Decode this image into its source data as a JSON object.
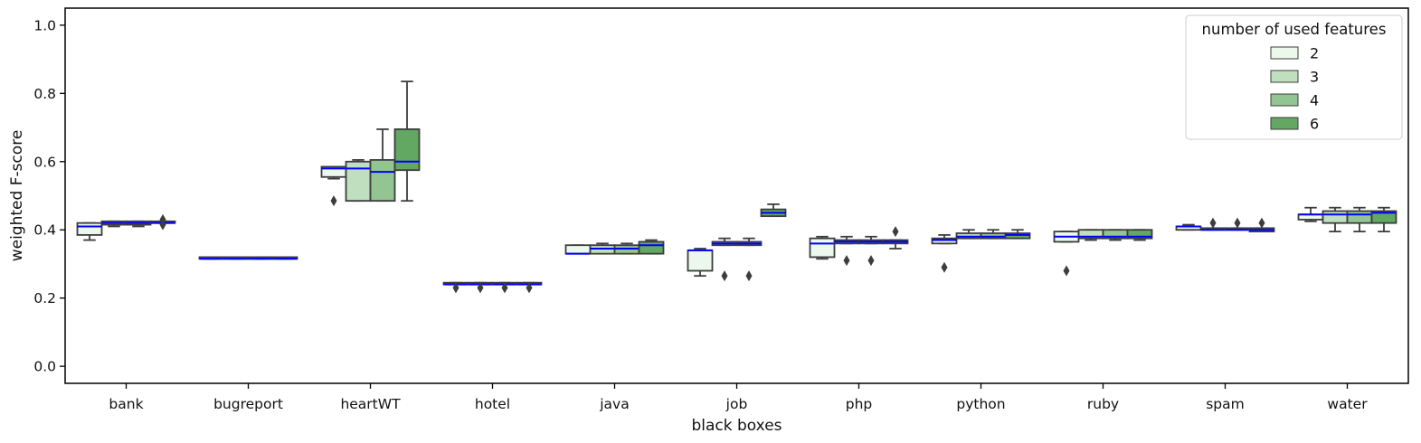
{
  "chart_data": {
    "type": "boxplot",
    "title": "",
    "xlabel": "black boxes",
    "ylabel": "weighted F-score",
    "ylim": [
      -0.05,
      1.05
    ],
    "yticks": [
      0.0,
      0.2,
      0.4,
      0.6,
      0.8,
      1.0
    ],
    "ytick_labels": [
      "0.0",
      "0.2",
      "0.4",
      "0.6",
      "0.8",
      "1.0"
    ],
    "grid": false,
    "legend": {
      "title": "number of used features",
      "placement": "top-right",
      "entries": [
        {
          "label": "2",
          "color": "#edf8ed"
        },
        {
          "label": "3",
          "color": "#bfdfbf"
        },
        {
          "label": "4",
          "color": "#93c593"
        },
        {
          "label": "6",
          "color": "#62a762"
        }
      ]
    },
    "colors": {
      "box_edge": "#3d3d3d",
      "median": "#0000ff",
      "axis": "#000000"
    },
    "categories": [
      "bank",
      "bugreport",
      "heartWT",
      "hotel",
      "java",
      "job",
      "php",
      "python",
      "ruby",
      "spam",
      "water"
    ],
    "series": [
      {
        "name": "2",
        "boxes": [
          {
            "whislo": 0.37,
            "q1": 0.385,
            "med": 0.41,
            "q3": 0.42,
            "whishi": 0.42,
            "fliers": []
          },
          {
            "whislo": 0.315,
            "q1": 0.315,
            "med": 0.315,
            "q3": 0.32,
            "whishi": 0.32,
            "fliers": []
          },
          {
            "whislo": 0.55,
            "q1": 0.555,
            "med": 0.58,
            "q3": 0.585,
            "whishi": 0.585,
            "fliers": [
              0.485
            ]
          },
          {
            "whislo": 0.24,
            "q1": 0.24,
            "med": 0.24,
            "q3": 0.245,
            "whishi": 0.245,
            "fliers": [
              0.23
            ]
          },
          {
            "whislo": 0.33,
            "q1": 0.33,
            "med": 0.33,
            "q3": 0.355,
            "whishi": 0.355,
            "fliers": []
          },
          {
            "whislo": 0.265,
            "q1": 0.28,
            "med": 0.34,
            "q3": 0.34,
            "whishi": 0.345,
            "fliers": []
          },
          {
            "whislo": 0.315,
            "q1": 0.32,
            "med": 0.36,
            "q3": 0.375,
            "whishi": 0.38,
            "fliers": []
          },
          {
            "whislo": 0.36,
            "q1": 0.36,
            "med": 0.37,
            "q3": 0.375,
            "whishi": 0.385,
            "fliers": [
              0.29
            ]
          },
          {
            "whislo": 0.365,
            "q1": 0.365,
            "med": 0.38,
            "q3": 0.395,
            "whishi": 0.395,
            "fliers": [
              0.28
            ]
          },
          {
            "whislo": 0.4,
            "q1": 0.4,
            "med": 0.41,
            "q3": 0.41,
            "whishi": 0.415,
            "fliers": []
          },
          {
            "whislo": 0.425,
            "q1": 0.43,
            "med": 0.445,
            "q3": 0.445,
            "whishi": 0.465,
            "fliers": []
          }
        ]
      },
      {
        "name": "3",
        "boxes": [
          {
            "whislo": 0.41,
            "q1": 0.415,
            "med": 0.42,
            "q3": 0.425,
            "whishi": 0.425,
            "fliers": []
          },
          {
            "whislo": 0.315,
            "q1": 0.315,
            "med": 0.315,
            "q3": 0.32,
            "whishi": 0.32,
            "fliers": []
          },
          {
            "whislo": 0.485,
            "q1": 0.485,
            "med": 0.58,
            "q3": 0.6,
            "whishi": 0.605,
            "fliers": []
          },
          {
            "whislo": 0.24,
            "q1": 0.24,
            "med": 0.24,
            "q3": 0.245,
            "whishi": 0.245,
            "fliers": [
              0.23
            ]
          },
          {
            "whislo": 0.33,
            "q1": 0.33,
            "med": 0.345,
            "q3": 0.355,
            "whishi": 0.36,
            "fliers": []
          },
          {
            "whislo": 0.355,
            "q1": 0.355,
            "med": 0.36,
            "q3": 0.365,
            "whishi": 0.375,
            "fliers": [
              0.265
            ]
          },
          {
            "whislo": 0.36,
            "q1": 0.36,
            "med": 0.365,
            "q3": 0.37,
            "whishi": 0.38,
            "fliers": [
              0.31
            ]
          },
          {
            "whislo": 0.375,
            "q1": 0.375,
            "med": 0.38,
            "q3": 0.39,
            "whishi": 0.4,
            "fliers": []
          },
          {
            "whislo": 0.37,
            "q1": 0.375,
            "med": 0.38,
            "q3": 0.4,
            "whishi": 0.4,
            "fliers": []
          },
          {
            "whislo": 0.4,
            "q1": 0.4,
            "med": 0.4,
            "q3": 0.405,
            "whishi": 0.405,
            "fliers": [
              0.42
            ]
          },
          {
            "whislo": 0.395,
            "q1": 0.42,
            "med": 0.445,
            "q3": 0.455,
            "whishi": 0.465,
            "fliers": []
          }
        ]
      },
      {
        "name": "4",
        "boxes": [
          {
            "whislo": 0.41,
            "q1": 0.415,
            "med": 0.42,
            "q3": 0.425,
            "whishi": 0.425,
            "fliers": []
          },
          {
            "whislo": 0.315,
            "q1": 0.315,
            "med": 0.315,
            "q3": 0.32,
            "whishi": 0.32,
            "fliers": []
          },
          {
            "whislo": 0.485,
            "q1": 0.485,
            "med": 0.57,
            "q3": 0.605,
            "whishi": 0.695,
            "fliers": []
          },
          {
            "whislo": 0.24,
            "q1": 0.24,
            "med": 0.24,
            "q3": 0.245,
            "whishi": 0.245,
            "fliers": [
              0.23
            ]
          },
          {
            "whislo": 0.33,
            "q1": 0.33,
            "med": 0.345,
            "q3": 0.355,
            "whishi": 0.36,
            "fliers": []
          },
          {
            "whislo": 0.355,
            "q1": 0.355,
            "med": 0.36,
            "q3": 0.365,
            "whishi": 0.375,
            "fliers": [
              0.265
            ]
          },
          {
            "whislo": 0.36,
            "q1": 0.36,
            "med": 0.365,
            "q3": 0.37,
            "whishi": 0.38,
            "fliers": [
              0.31
            ]
          },
          {
            "whislo": 0.375,
            "q1": 0.375,
            "med": 0.38,
            "q3": 0.39,
            "whishi": 0.4,
            "fliers": []
          },
          {
            "whislo": 0.37,
            "q1": 0.375,
            "med": 0.38,
            "q3": 0.4,
            "whishi": 0.4,
            "fliers": []
          },
          {
            "whislo": 0.4,
            "q1": 0.4,
            "med": 0.4,
            "q3": 0.405,
            "whishi": 0.405,
            "fliers": [
              0.42
            ]
          },
          {
            "whislo": 0.395,
            "q1": 0.42,
            "med": 0.445,
            "q3": 0.455,
            "whishi": 0.465,
            "fliers": []
          }
        ]
      },
      {
        "name": "6",
        "boxes": [
          {
            "whislo": 0.42,
            "q1": 0.42,
            "med": 0.42,
            "q3": 0.425,
            "whishi": 0.425,
            "fliers": [
              0.415,
              0.43
            ]
          },
          {
            "whislo": 0.315,
            "q1": 0.315,
            "med": 0.315,
            "q3": 0.32,
            "whishi": 0.32,
            "fliers": []
          },
          {
            "whislo": 0.485,
            "q1": 0.575,
            "med": 0.6,
            "q3": 0.695,
            "whishi": 0.835,
            "fliers": []
          },
          {
            "whislo": 0.24,
            "q1": 0.24,
            "med": 0.24,
            "q3": 0.245,
            "whishi": 0.245,
            "fliers": [
              0.23
            ]
          },
          {
            "whislo": 0.33,
            "q1": 0.33,
            "med": 0.355,
            "q3": 0.365,
            "whishi": 0.37,
            "fliers": []
          },
          {
            "whislo": 0.44,
            "q1": 0.44,
            "med": 0.45,
            "q3": 0.46,
            "whishi": 0.475,
            "fliers": []
          },
          {
            "whislo": 0.345,
            "q1": 0.36,
            "med": 0.365,
            "q3": 0.37,
            "whishi": 0.37,
            "fliers": [
              0.395
            ]
          },
          {
            "whislo": 0.375,
            "q1": 0.375,
            "med": 0.385,
            "q3": 0.39,
            "whishi": 0.4,
            "fliers": []
          },
          {
            "whislo": 0.37,
            "q1": 0.375,
            "med": 0.38,
            "q3": 0.4,
            "whishi": 0.4,
            "fliers": []
          },
          {
            "whislo": 0.395,
            "q1": 0.395,
            "med": 0.4,
            "q3": 0.405,
            "whishi": 0.405,
            "fliers": [
              0.42
            ]
          },
          {
            "whislo": 0.395,
            "q1": 0.42,
            "med": 0.45,
            "q3": 0.455,
            "whishi": 0.465,
            "fliers": []
          }
        ]
      }
    ]
  }
}
